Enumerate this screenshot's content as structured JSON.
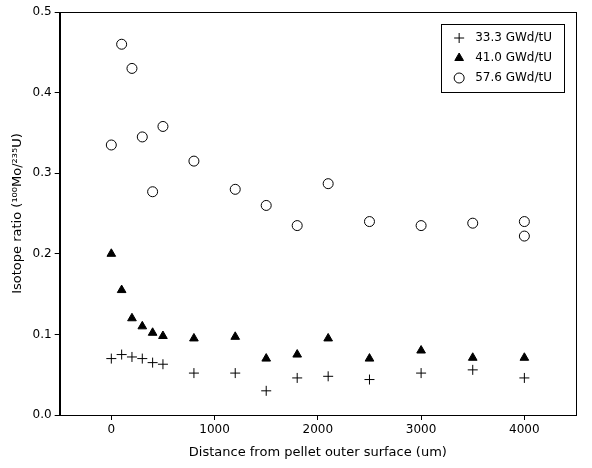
{
  "chart_data": {
    "type": "scatter",
    "x_label": "Distance from pellet outer surface (um)",
    "y_label": "Isotope ratio (¹⁰⁰Mo/²³⁵U)",
    "xlim": [
      -500,
      4500
    ],
    "xticks": [
      0,
      1000,
      2000,
      3000,
      4000
    ],
    "ylim": [
      0,
      0.5
    ],
    "yticks": [
      {
        "value": 0,
        "label": "0.0"
      },
      0.1,
      0.2,
      0.3,
      0.4,
      0.5
    ],
    "grid": false,
    "legend": "upper right",
    "series": [
      {
        "name": "33.3 GWd/tU",
        "color": "#000000",
        "marker": "plus",
        "x": [
          0,
          100,
          200,
          300,
          400,
          500,
          800,
          1200,
          1500,
          1800,
          2100,
          2500,
          3000,
          3500,
          4000
        ],
        "values": [
          0.07,
          0.075,
          0.072,
          0.07,
          0.065,
          0.063,
          0.052,
          0.052,
          0.03,
          0.046,
          0.048,
          0.044,
          0.052,
          0.056,
          0.046
        ]
      },
      {
        "name": "41.0 GWd/tU",
        "color": "#000000",
        "marker": "triangle",
        "x": [
          0,
          100,
          200,
          300,
          400,
          500,
          800,
          1200,
          1500,
          1800,
          2100,
          2500,
          3000,
          3500,
          4000
        ],
        "values": [
          0.2,
          0.155,
          0.12,
          0.11,
          0.102,
          0.098,
          0.095,
          0.097,
          0.07,
          0.075,
          0.095,
          0.07,
          0.08,
          0.071,
          0.071
        ]
      },
      {
        "name": "57.6 GWd/tU",
        "color": "#000000",
        "marker": "open_circle",
        "x": [
          0,
          100,
          200,
          300,
          400,
          500,
          800,
          1200,
          1500,
          1800,
          2100,
          2500,
          3000,
          3500,
          4000,
          4000
        ],
        "values": [
          0.335,
          0.46,
          0.43,
          0.345,
          0.277,
          0.358,
          0.315,
          0.28,
          0.26,
          0.235,
          0.287,
          0.24,
          0.235,
          0.238,
          0.24,
          0.222
        ]
      }
    ]
  }
}
